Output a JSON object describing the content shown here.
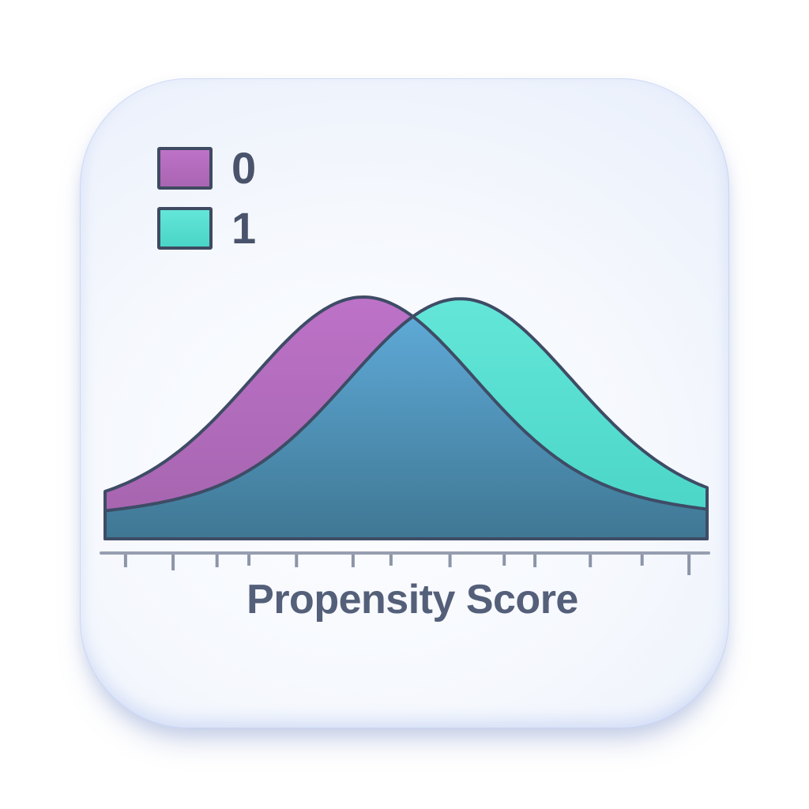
{
  "page": {
    "background": "#ffffff"
  },
  "card": {
    "bg_center": "#fcfdff",
    "bg_edge": "#dce6f8",
    "rim_color": "rgba(148,172,235,0.33)"
  },
  "legend": {
    "position": "top-left",
    "text_color": "#49536b",
    "swatch_border": "#3f4a62",
    "items": [
      {
        "label": "0",
        "swatch_top": "#bd72c8",
        "swatch_bottom": "#a965b1"
      },
      {
        "label": "1",
        "swatch_top": "#63e6d8",
        "swatch_bottom": "#49d5c7"
      }
    ]
  },
  "chart_data": {
    "type": "area",
    "subtype": "overlapping-density",
    "title": "",
    "xlabel": "Propensity Score",
    "ylabel": "",
    "x_range": [
      0,
      1
    ],
    "y_axis_visible": false,
    "grid": false,
    "legend_position": "top-left",
    "series": [
      {
        "name": "0",
        "mean": 0.429,
        "sd": 0.181,
        "tail_sd": 0.551,
        "core_weight": 0.8,
        "tail_weight": 0.2,
        "peak_rel_height": 1.0,
        "fill_top": "#bd72c8",
        "fill_bottom": "#a464ad"
      },
      {
        "name": "1",
        "mean": 0.59,
        "sd": 0.181,
        "tail_sd": 0.551,
        "core_weight": 0.8,
        "tail_weight": 0.2,
        "peak_rel_height": 0.993,
        "fill_top": "#63e6d8",
        "fill_bottom": "#48d4c6"
      }
    ],
    "overlap_fill_top": "#5ea9d7",
    "overlap_fill_bottom": "#3f7793",
    "outline_color": "#3e4c66",
    "outline_width": 4,
    "axis_color": "#969eb0",
    "tick_color": "#8d95a8",
    "tick_positions": [
      0.034,
      0.113,
      0.186,
      0.239,
      0.318,
      0.412,
      0.475,
      0.573,
      0.663,
      0.714,
      0.806,
      0.892,
      0.97
    ],
    "tick_lengths": [
      16,
      20,
      16,
      14,
      16,
      16,
      14,
      16,
      14,
      16,
      16,
      14,
      26
    ]
  }
}
